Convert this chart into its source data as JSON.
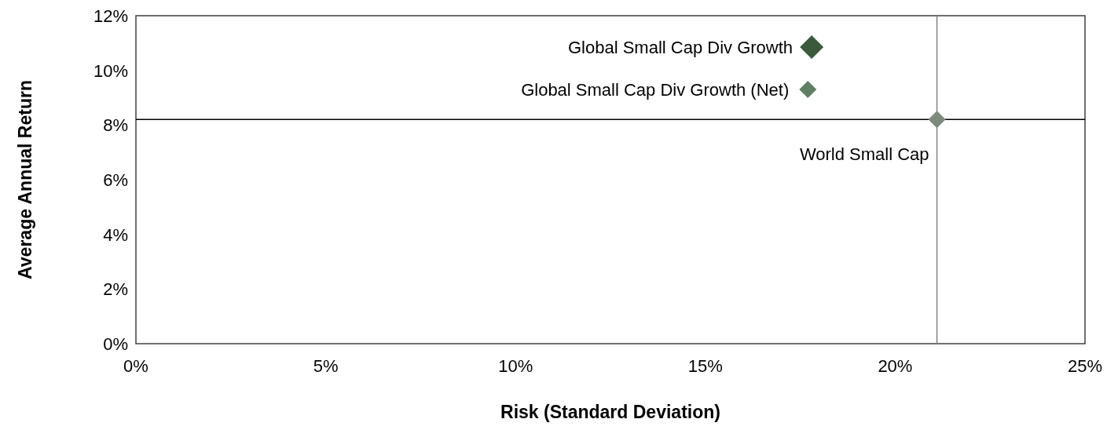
{
  "chart_data": {
    "type": "scatter",
    "xlabel": "Risk (Standard Deviation)",
    "ylabel": "Average Annual Return",
    "marker": "diamond",
    "grid": false,
    "xlim": [
      0,
      25
    ],
    "xticks": [
      {
        "value": 0,
        "label": "0%"
      },
      {
        "value": 5,
        "label": "5%"
      },
      {
        "value": 10,
        "label": "10%"
      },
      {
        "value": 15,
        "label": "15%"
      },
      {
        "value": 20,
        "label": "20%"
      },
      {
        "value": 25,
        "label": "25%"
      }
    ],
    "ylim": [
      0,
      12
    ],
    "yticks": [
      {
        "value": 0,
        "label": "0%"
      },
      {
        "value": 2,
        "label": "2%"
      },
      {
        "value": 4,
        "label": "4%"
      },
      {
        "value": 6,
        "label": "6%"
      },
      {
        "value": 8,
        "label": "8%"
      },
      {
        "value": 10,
        "label": "10%"
      },
      {
        "value": 12,
        "label": "12%"
      }
    ],
    "series": [
      {
        "name": "Global Small Cap Div Growth",
        "color": "#3b5a3c",
        "x": [
          17.8
        ],
        "values": [
          10.85
        ]
      },
      {
        "name": "Global Small Cap Div Growth (Net)",
        "color": "#5f7f63",
        "x": [
          17.7
        ],
        "values": [
          9.3
        ]
      },
      {
        "name": "World Small Cap",
        "color": "#7f8a7f",
        "x": [
          21.1
        ],
        "values": [
          8.2
        ]
      }
    ],
    "ref_lines": [
      {
        "axis": "x",
        "value": 21.1,
        "color": "#808080"
      },
      {
        "axis": "y",
        "value": 8.2,
        "color": "#000000"
      }
    ]
  }
}
